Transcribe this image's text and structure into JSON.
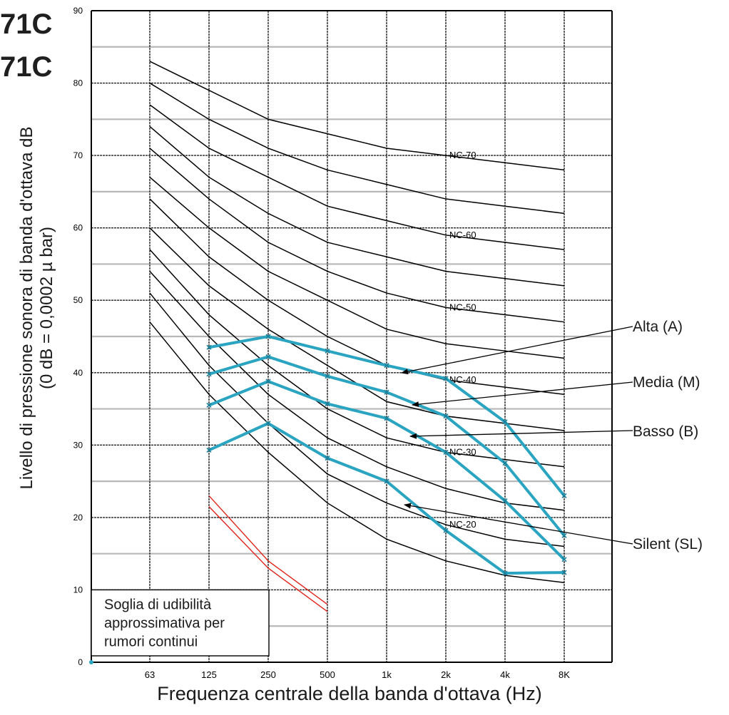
{
  "page": {
    "model_lines": [
      "71C",
      "71C"
    ]
  },
  "chart_data": {
    "type": "line",
    "xlabel": "Frequenza centrale della banda d'ottava (Hz)",
    "ylabel_line1": "Livello di pressione sonora di banda d'ottava dB",
    "ylabel_line2": "(0 dB = 0,0002 µ bar)",
    "categories": [
      "63",
      "125",
      "250",
      "500",
      "1k",
      "2k",
      "4k",
      "8K"
    ],
    "ylim": [
      0,
      90
    ],
    "yticks": [
      0,
      10,
      20,
      30,
      40,
      50,
      60,
      70,
      80,
      90
    ],
    "grid": true,
    "nc_curves": [
      {
        "name": "NC-70",
        "values": [
          83,
          79,
          75,
          73,
          71,
          70,
          69,
          68
        ]
      },
      {
        "name": "",
        "values": [
          80,
          75,
          71,
          68,
          66,
          64,
          63,
          62
        ]
      },
      {
        "name": "NC-60",
        "values": [
          77,
          71,
          67,
          63,
          61,
          59,
          58,
          57
        ]
      },
      {
        "name": "",
        "values": [
          74,
          67,
          62,
          58,
          56,
          54,
          53,
          52
        ]
      },
      {
        "name": "NC-50",
        "values": [
          71,
          64,
          58,
          54,
          51,
          49,
          48,
          47
        ]
      },
      {
        "name": "",
        "values": [
          67,
          60,
          54,
          50,
          46,
          44,
          43,
          42
        ]
      },
      {
        "name": "NC-40",
        "values": [
          64,
          56,
          50,
          45,
          41,
          39,
          38,
          37
        ]
      },
      {
        "name": "",
        "values": [
          60,
          52,
          46,
          41,
          36,
          34,
          33,
          32
        ]
      },
      {
        "name": "NC-30",
        "values": [
          57,
          48,
          41,
          35,
          31,
          29,
          28,
          27
        ]
      },
      {
        "name": "",
        "values": [
          54,
          45,
          37,
          31,
          27,
          24,
          22,
          21
        ]
      },
      {
        "name": "NC-20",
        "values": [
          51,
          41,
          33,
          26,
          22,
          19,
          17,
          16
        ]
      },
      {
        "name": "",
        "values": [
          47,
          37,
          29,
          22,
          17,
          14,
          12,
          11
        ]
      }
    ],
    "series": [
      {
        "name": "Alta (A)",
        "values": [
          null,
          43.5,
          45.0,
          43.0,
          41.0,
          39.2,
          33.2,
          23.0
        ]
      },
      {
        "name": "Media (M)",
        "values": [
          null,
          39.8,
          42.2,
          39.5,
          37.3,
          34.0,
          27.5,
          17.5
        ]
      },
      {
        "name": "Basso (B)",
        "values": [
          null,
          35.5,
          38.8,
          35.7,
          33.7,
          29.0,
          22.3,
          14.2
        ]
      },
      {
        "name": "Silent (SL)",
        "values": [
          null,
          29.3,
          33.0,
          28.2,
          25.0,
          18.2,
          12.3,
          12.4
        ]
      }
    ],
    "threshold": {
      "label_lines": [
        "Soglia di udibilità",
        "approssimativa per",
        "rumori continui"
      ],
      "line1": [
        [
          1,
          23
        ],
        [
          2,
          14
        ],
        [
          3,
          8
        ]
      ],
      "line2": [
        [
          1,
          21.5
        ],
        [
          2,
          13
        ],
        [
          3,
          7
        ]
      ]
    },
    "colors": {
      "series": "#2aa4c0",
      "nc": "#000000",
      "threshold": "#e0241b",
      "grid": "#b8b8b8"
    }
  }
}
